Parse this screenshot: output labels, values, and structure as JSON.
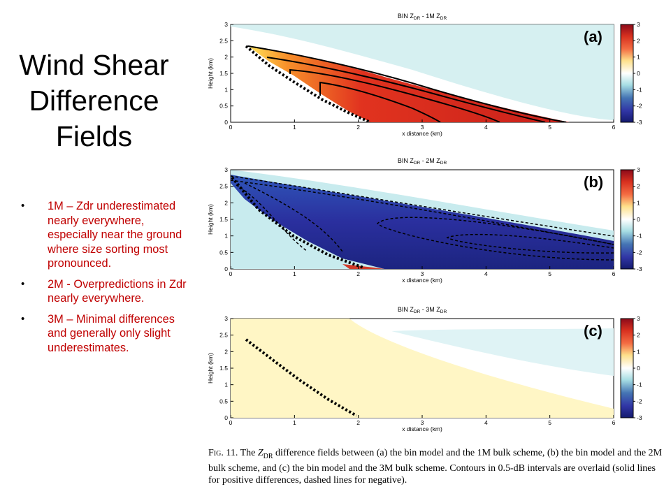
{
  "slide": {
    "title_lines": [
      "Wind Shear",
      "Difference",
      "Fields"
    ],
    "bullets": [
      "1M – Zdr underestimated nearly everywhere, especially near the ground where size sorting most pronounced.",
      "2M - Overpredictions in Zdr nearly everywhere.",
      "3M – Minimal differences and generally only slight underestimates."
    ]
  },
  "figure": {
    "panels": [
      {
        "id": "a",
        "label": "(a)",
        "title_prefix": "BIN Z",
        "title_mid": " - 1M Z",
        "subscript": "DR"
      },
      {
        "id": "b",
        "label": "(b)",
        "title_prefix": "BIN Z",
        "title_mid": " - 2M Z",
        "subscript": "DR"
      },
      {
        "id": "c",
        "label": "(c)",
        "title_prefix": "BIN Z",
        "title_mid": " - 3M Z",
        "subscript": "DR"
      }
    ],
    "x_axis_label": "x distance (km)",
    "y_axis_label": "Height (km)",
    "x_ticks": [
      "0",
      "1",
      "2",
      "3",
      "4",
      "5",
      "6"
    ],
    "y_ticks": [
      "0",
      "0.5",
      "1",
      "1.5",
      "2",
      "2.5",
      "3"
    ],
    "colorbar_ticks": [
      "3",
      "2",
      "1",
      "0",
      "-1",
      "-2",
      "-3"
    ],
    "colors": {
      "very_positive": "#b2182b",
      "positive": "#ef5a2a",
      "slightly_positive": "#ffeb7a",
      "near_zero": "#ffffff",
      "slightly_negative": "#bfe6e8",
      "negative": "#3a3fb5",
      "very_negative": "#1a237e"
    }
  },
  "caption": {
    "label": "Fig. 11.",
    "before_symbol": " The ",
    "symbol": "Z",
    "symbol_sub": "DR",
    "text": " difference fields between (a) the bin model and the 1M bulk scheme, (b) the bin model and the 2M bulk scheme, and (c) the bin model and the 3M bulk scheme. Contours in 0.5-dB intervals are overlaid (solid lines for positive differences, dashed lines for negative)."
  }
}
